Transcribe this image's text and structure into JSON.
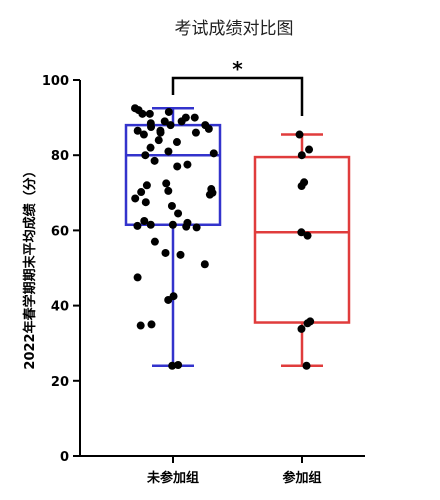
{
  "chart_data": {
    "type": "box",
    "title": "考试成绩对比图",
    "ylabel": "2022年春学期期末平均成绩（分）",
    "xlabel": "",
    "ylim": [
      0,
      100
    ],
    "yticks": [
      0,
      20,
      40,
      60,
      80,
      100
    ],
    "grid": false,
    "significance": {
      "label": "*",
      "between": [
        "未参加组",
        "参加组"
      ]
    },
    "groups": [
      {
        "category": "未参加组",
        "color": "#3333cc",
        "box": {
          "min": 24,
          "q1": 61.5,
          "median": 80,
          "q3": 88,
          "max": 92.5
        },
        "points": [
          24,
          24.2,
          34.7,
          35,
          41.5,
          42.5,
          47.5,
          51,
          53.5,
          54,
          57,
          60.8,
          61,
          61.2,
          61.5,
          61.5,
          62,
          62.5,
          64.5,
          66.5,
          67.5,
          68.5,
          69.5,
          70,
          70.2,
          70.5,
          71,
          72,
          72.5,
          77,
          77.5,
          78.5,
          80,
          80.5,
          81,
          82,
          83.5,
          84,
          85.5,
          86,
          86,
          86.5,
          86.5,
          87,
          87.5,
          88,
          88,
          88.5,
          89,
          89,
          90,
          90,
          91,
          91,
          91.5,
          92,
          92.5
        ]
      },
      {
        "category": "参加组",
        "color": "#e03c3c",
        "box": {
          "min": 24,
          "q1": 35.5,
          "median": 59.5,
          "q3": 79.5,
          "max": 85.5
        },
        "points": [
          24,
          33.8,
          35.3,
          35.8,
          58.6,
          59.5,
          71.8,
          72.8,
          80,
          81.5,
          85.5
        ]
      }
    ]
  }
}
